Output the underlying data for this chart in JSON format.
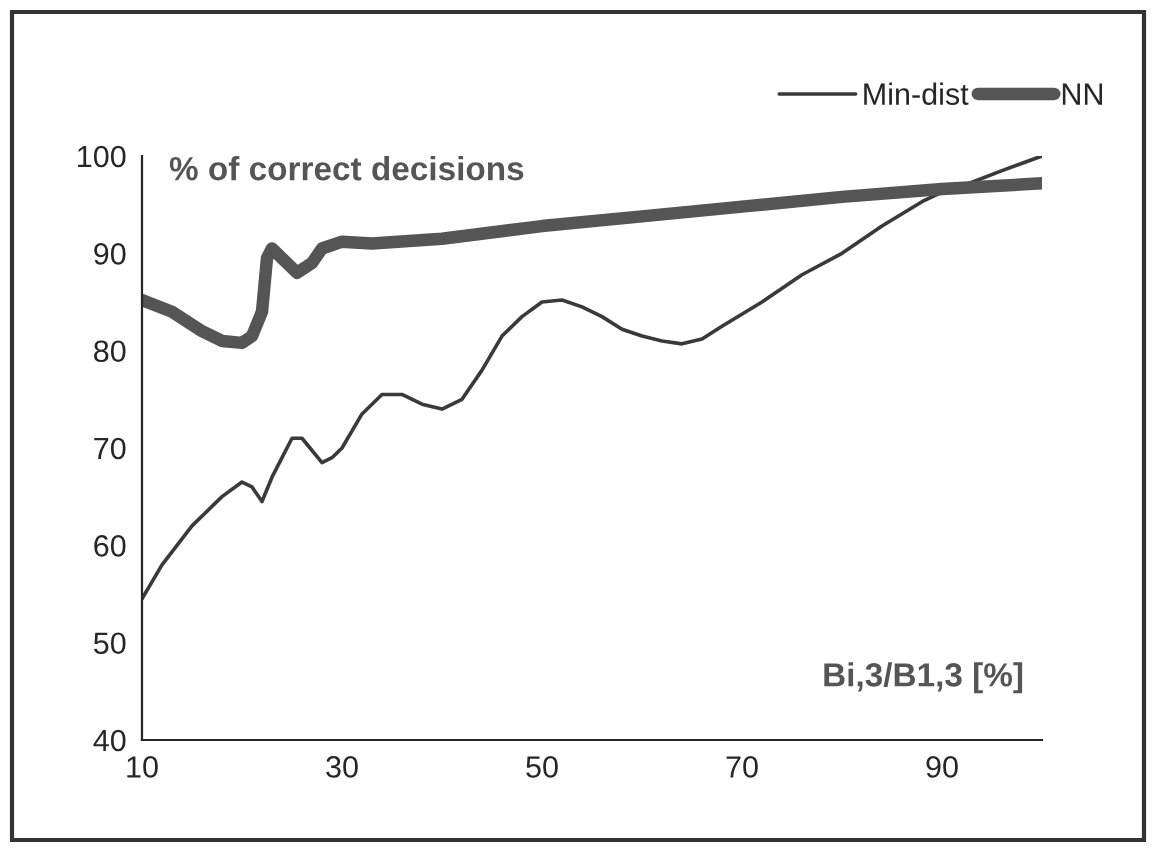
{
  "chart_data": {
    "type": "line",
    "ylabel": "% of correct decisions",
    "xlabel": "Bi,3/B1,3 [%]",
    "xlim": [
      10,
      100
    ],
    "ylim": [
      40,
      100
    ],
    "xticks": [
      10,
      30,
      50,
      70,
      90
    ],
    "yticks": [
      40,
      50,
      60,
      70,
      80,
      90,
      100
    ],
    "grid": false,
    "legend": "top right",
    "series": [
      {
        "name": "Min-dist",
        "color": "#3a3a3a",
        "x": [
          10,
          12,
          15,
          18,
          20,
          21,
          22,
          23,
          25,
          26,
          28,
          29,
          30,
          32,
          34,
          36,
          38,
          40,
          42,
          44,
          46,
          48,
          50,
          52,
          54,
          56,
          58,
          60,
          62,
          64,
          66,
          68,
          72,
          76,
          80,
          84,
          88,
          90,
          93,
          96,
          100
        ],
        "values": [
          54.5,
          58,
          62,
          65,
          66.5,
          66,
          64.5,
          67,
          71,
          71,
          68.5,
          69,
          70,
          73.5,
          75.5,
          75.5,
          74.5,
          74,
          75,
          78,
          81.5,
          83.5,
          85,
          85.2,
          84.5,
          83.5,
          82.2,
          81.5,
          81,
          80.7,
          81.2,
          82.5,
          85,
          87.8,
          90,
          92.8,
          95.3,
          96.3,
          97.3,
          98.5,
          100
        ]
      },
      {
        "name": "NN",
        "color": "#555555",
        "x": [
          10,
          13,
          16,
          18,
          20,
          21,
          22,
          22.5,
          23,
          24,
          25.5,
          27,
          28,
          30,
          33,
          40,
          50,
          60,
          70,
          80,
          90,
          100
        ],
        "values": [
          85.2,
          84,
          82,
          81,
          80.8,
          81.5,
          84,
          89.5,
          90.5,
          89.5,
          88,
          89,
          90.5,
          91.2,
          91,
          91.5,
          92.8,
          93.8,
          94.8,
          95.8,
          96.6,
          97.2
        ]
      }
    ]
  }
}
